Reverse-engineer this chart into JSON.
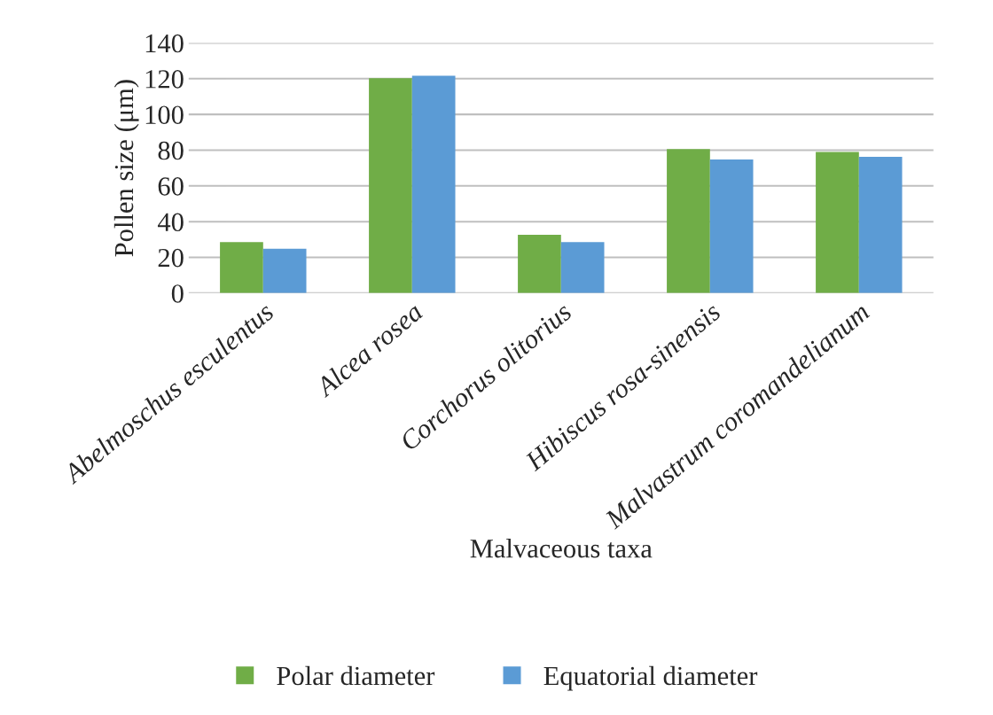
{
  "chart_data": {
    "type": "bar",
    "xlabel": "Malvaceous taxa",
    "ylabel": "Pollen size (μm)",
    "categories": [
      "Abelmoschus esculentus",
      "Alcea rosea",
      "Corchorus olitorius",
      "Hibiscus rosa-sinensis",
      "Malvastrum coromandelianum"
    ],
    "series": [
      {
        "name": "Polar diameter",
        "color": "#70ad47",
        "values": [
          28.6,
          120.2,
          32.6,
          80.6,
          79
        ]
      },
      {
        "name": "Equatorial diameter",
        "color": "#5b9bd5",
        "values": [
          24.8,
          121.6,
          28.6,
          74.8,
          76.3
        ]
      }
    ],
    "ylim": [
      0,
      140
    ],
    "yticks": [
      0,
      20,
      40,
      60,
      80,
      100,
      120,
      140
    ],
    "grid": "y",
    "legend": "bottom"
  }
}
